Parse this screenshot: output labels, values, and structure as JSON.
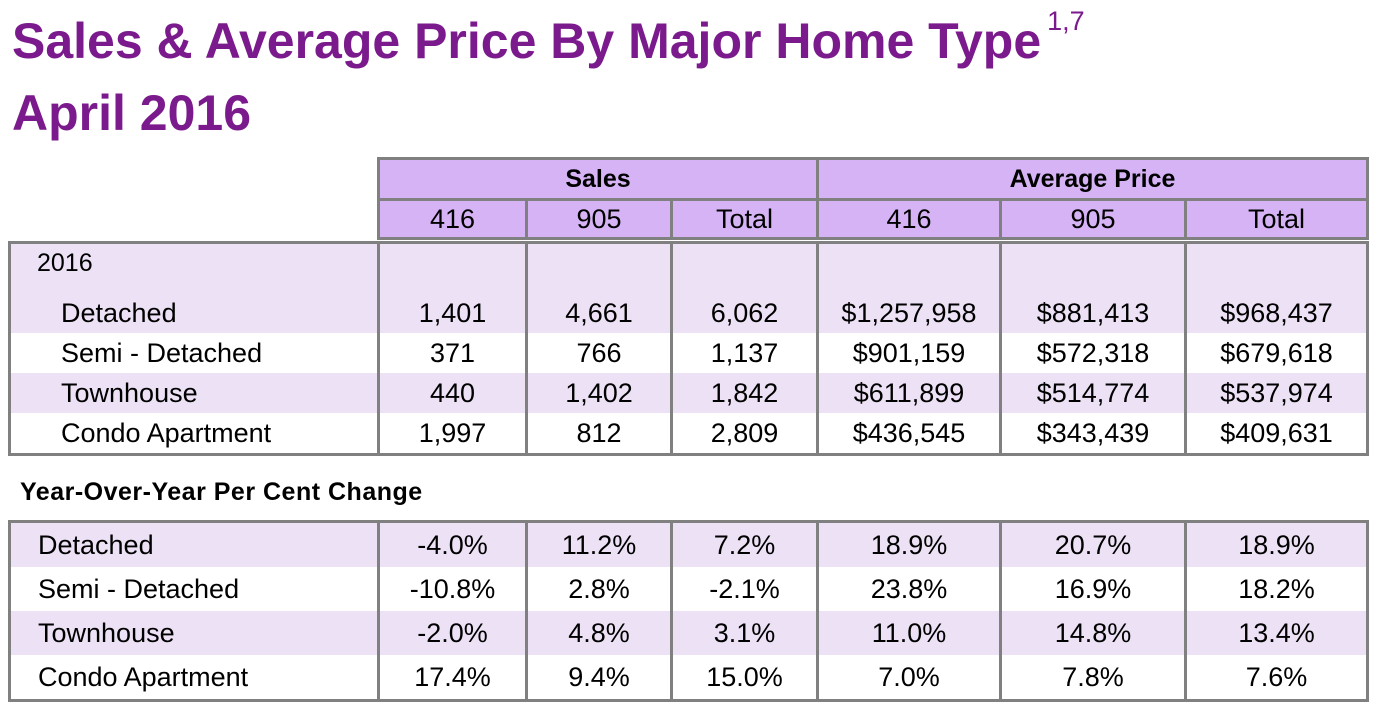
{
  "title": {
    "line1": "Sales & Average Price By Major Home Type",
    "footnote": "1,7",
    "line2": "April 2016"
  },
  "header": {
    "sales_group": "Sales",
    "price_group": "Average Price",
    "columns": [
      "416",
      "905",
      "Total",
      "416",
      "905",
      "Total"
    ]
  },
  "year_block": {
    "year": "2016",
    "rows": [
      {
        "label": "Detached",
        "values": [
          "1,401",
          "4,661",
          "6,062",
          "$1,257,958",
          "$881,413",
          "$968,437"
        ]
      },
      {
        "label": "Semi - Detached",
        "values": [
          "371",
          "766",
          "1,137",
          "$901,159",
          "$572,318",
          "$679,618"
        ]
      },
      {
        "label": "Townhouse",
        "values": [
          "440",
          "1,402",
          "1,842",
          "$611,899",
          "$514,774",
          "$537,974"
        ]
      },
      {
        "label": "Condo Apartment",
        "values": [
          "1,997",
          "812",
          "2,809",
          "$436,545",
          "$343,439",
          "$409,631"
        ]
      }
    ]
  },
  "yoy": {
    "heading": "Year-Over-Year Per Cent Change",
    "rows": [
      {
        "label": "Detached",
        "values": [
          "-4.0%",
          "11.2%",
          "7.2%",
          "18.9%",
          "20.7%",
          "18.9%"
        ]
      },
      {
        "label": "Semi - Detached",
        "values": [
          "-10.8%",
          "2.8%",
          "-2.1%",
          "23.8%",
          "16.9%",
          "18.2%"
        ]
      },
      {
        "label": "Townhouse",
        "values": [
          "-2.0%",
          "4.8%",
          "3.1%",
          "11.0%",
          "14.8%",
          "13.4%"
        ]
      },
      {
        "label": "Condo Apartment",
        "values": [
          "17.4%",
          "9.4%",
          "15.0%",
          "7.0%",
          "7.8%",
          "7.6%"
        ]
      }
    ]
  },
  "colors": {
    "title": "#7b1a8c",
    "header_fill": "#d6b3f5",
    "row_shade": "#ede2f5",
    "border": "#808080"
  }
}
